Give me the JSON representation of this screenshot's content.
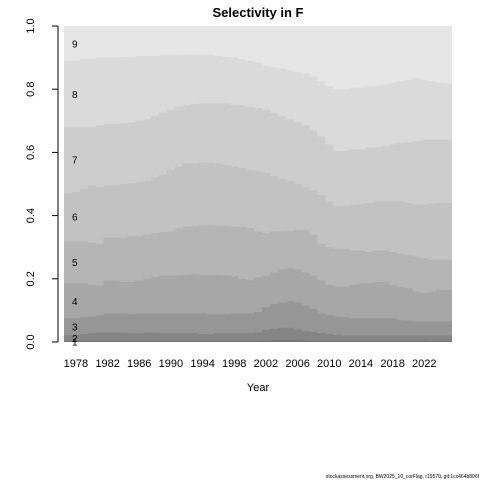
{
  "chart_data": {
    "type": "area",
    "title": "Selectivity in F",
    "xlabel": "Year",
    "ylabel": "",
    "xlim": [
      1977,
      2025
    ],
    "ylim": [
      0,
      1
    ],
    "xticks": [
      "1978",
      "1982",
      "1986",
      "1990",
      "1994",
      "1998",
      "2002",
      "2006",
      "2010",
      "2014",
      "2018",
      "2022"
    ],
    "yticks": [
      "0.0",
      "0.2",
      "0.4",
      "0.6",
      "0.8",
      "1.0"
    ],
    "x_start": 1977,
    "boundary_labels": [
      "9",
      "8",
      "7",
      "6",
      "5",
      "4",
      "3",
      "2",
      "1"
    ],
    "colors": [
      "#e6e6e6",
      "#dadada",
      "#cdcdcd",
      "#c2c2c2",
      "#b5b5b5",
      "#a7a7a7",
      "#969696",
      "#858585",
      "#747474"
    ],
    "boundaries": [
      {
        "name": "8",
        "values": [
          0.89,
          0.89,
          0.895,
          0.895,
          0.9,
          0.9,
          0.9,
          0.902,
          0.902,
          0.905,
          0.905,
          0.905,
          0.908,
          0.908,
          0.908,
          0.91,
          0.91,
          0.908,
          0.908,
          0.905,
          0.902,
          0.9,
          0.895,
          0.89,
          0.885,
          0.875,
          0.87,
          0.865,
          0.86,
          0.855,
          0.85,
          0.84,
          0.825,
          0.81,
          0.8,
          0.8,
          0.805,
          0.805,
          0.81,
          0.81,
          0.815,
          0.82,
          0.825,
          0.83,
          0.835,
          0.83,
          0.825,
          0.82,
          0.818
        ]
      },
      {
        "name": "7",
        "values": [
          0.68,
          0.68,
          0.68,
          0.68,
          0.685,
          0.69,
          0.69,
          0.692,
          0.695,
          0.7,
          0.705,
          0.715,
          0.725,
          0.735,
          0.745,
          0.75,
          0.753,
          0.755,
          0.755,
          0.755,
          0.755,
          0.75,
          0.75,
          0.745,
          0.74,
          0.735,
          0.725,
          0.715,
          0.705,
          0.695,
          0.685,
          0.67,
          0.65,
          0.625,
          0.605,
          0.605,
          0.61,
          0.61,
          0.615,
          0.615,
          0.62,
          0.625,
          0.63,
          0.632,
          0.635,
          0.64,
          0.64,
          0.64,
          0.64
        ]
      },
      {
        "name": "6",
        "values": [
          0.47,
          0.475,
          0.485,
          0.495,
          0.49,
          0.495,
          0.495,
          0.5,
          0.502,
          0.505,
          0.51,
          0.52,
          0.53,
          0.545,
          0.555,
          0.565,
          0.565,
          0.568,
          0.568,
          0.565,
          0.56,
          0.555,
          0.55,
          0.545,
          0.54,
          0.535,
          0.525,
          0.515,
          0.51,
          0.5,
          0.49,
          0.48,
          0.465,
          0.445,
          0.43,
          0.43,
          0.435,
          0.437,
          0.44,
          0.445,
          0.445,
          0.445,
          0.445,
          0.44,
          0.435,
          0.435,
          0.438,
          0.44,
          0.44
        ]
      },
      {
        "name": "5",
        "values": [
          0.32,
          0.32,
          0.32,
          0.315,
          0.31,
          0.33,
          0.33,
          0.33,
          0.335,
          0.335,
          0.34,
          0.345,
          0.348,
          0.35,
          0.36,
          0.365,
          0.367,
          0.37,
          0.37,
          0.368,
          0.367,
          0.365,
          0.365,
          0.36,
          0.35,
          0.345,
          0.35,
          0.35,
          0.352,
          0.355,
          0.355,
          0.34,
          0.31,
          0.3,
          0.295,
          0.295,
          0.29,
          0.29,
          0.285,
          0.29,
          0.29,
          0.285,
          0.28,
          0.275,
          0.27,
          0.265,
          0.26,
          0.26,
          0.26
        ]
      },
      {
        "name": "4",
        "values": [
          0.185,
          0.185,
          0.185,
          0.18,
          0.178,
          0.195,
          0.195,
          0.19,
          0.19,
          0.195,
          0.2,
          0.205,
          0.21,
          0.21,
          0.21,
          0.213,
          0.215,
          0.213,
          0.213,
          0.212,
          0.21,
          0.208,
          0.2,
          0.195,
          0.205,
          0.21,
          0.22,
          0.23,
          0.235,
          0.23,
          0.22,
          0.21,
          0.195,
          0.18,
          0.175,
          0.175,
          0.18,
          0.185,
          0.185,
          0.19,
          0.19,
          0.18,
          0.175,
          0.17,
          0.16,
          0.155,
          0.16,
          0.165,
          0.165
        ]
      },
      {
        "name": "3",
        "values": [
          0.075,
          0.075,
          0.078,
          0.08,
          0.085,
          0.09,
          0.09,
          0.09,
          0.088,
          0.09,
          0.09,
          0.09,
          0.09,
          0.09,
          0.09,
          0.09,
          0.09,
          0.09,
          0.088,
          0.088,
          0.088,
          0.09,
          0.09,
          0.09,
          0.095,
          0.11,
          0.12,
          0.125,
          0.128,
          0.125,
          0.115,
          0.105,
          0.09,
          0.085,
          0.08,
          0.078,
          0.075,
          0.075,
          0.075,
          0.075,
          0.075,
          0.075,
          0.07,
          0.068,
          0.065,
          0.065,
          0.065,
          0.065,
          0.065
        ]
      },
      {
        "name": "2",
        "values": [
          0.022,
          0.022,
          0.025,
          0.028,
          0.03,
          0.03,
          0.03,
          0.03,
          0.028,
          0.028,
          0.03,
          0.03,
          0.028,
          0.028,
          0.028,
          0.028,
          0.028,
          0.025,
          0.025,
          0.028,
          0.028,
          0.028,
          0.028,
          0.028,
          0.03,
          0.038,
          0.042,
          0.045,
          0.045,
          0.04,
          0.035,
          0.032,
          0.028,
          0.025,
          0.022,
          0.02,
          0.02,
          0.02,
          0.02,
          0.02,
          0.02,
          0.02,
          0.02,
          0.02,
          0.02,
          0.02,
          0.02,
          0.02,
          0.02
        ]
      },
      {
        "name": "1",
        "values": [
          0.004,
          0.004,
          0.004,
          0.004,
          0.004,
          0.004,
          0.004,
          0.004,
          0.004,
          0.004,
          0.004,
          0.004,
          0.004,
          0.004,
          0.004,
          0.004,
          0.004,
          0.004,
          0.004,
          0.004,
          0.004,
          0.004,
          0.004,
          0.004,
          0.004,
          0.005,
          0.006,
          0.006,
          0.006,
          0.006,
          0.005,
          0.004,
          0.004,
          0.004,
          0.004,
          0.004,
          0.004,
          0.004,
          0.004,
          0.004,
          0.004,
          0.004,
          0.004,
          0.004,
          0.004,
          0.004,
          0.003,
          0.003,
          0.003
        ]
      }
    ]
  },
  "footer": "stockassessment.org, BW2025_10_corFlag, r19570, git:1cc464b806f"
}
